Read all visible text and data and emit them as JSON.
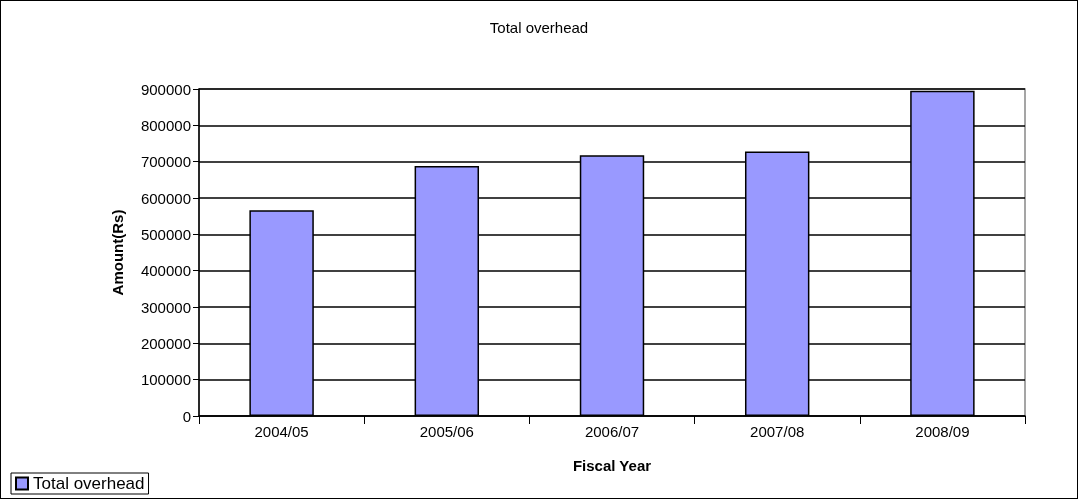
{
  "chart_data": {
    "type": "bar",
    "title": "Total overhead",
    "xlabel": "Fiscal Year",
    "ylabel": "Amount(Rs)",
    "categories": [
      "2004/05",
      "2005/06",
      "2006/07",
      "2007/08",
      "2008/09"
    ],
    "series": [
      {
        "name": "Total overhead",
        "color": "#9999ff",
        "values": [
          566000,
          688000,
          718000,
          728000,
          895000
        ]
      }
    ],
    "ylim": [
      0,
      900000
    ],
    "yticks": [
      0,
      100000,
      200000,
      300000,
      400000,
      500000,
      600000,
      700000,
      800000,
      900000
    ],
    "grid": "y",
    "legend": "bottom left"
  }
}
